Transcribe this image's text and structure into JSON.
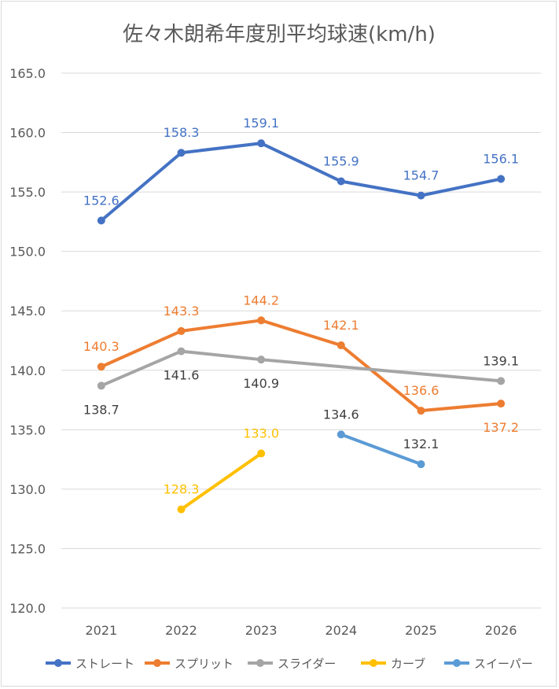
{
  "chart_data": {
    "type": "line",
    "title": "佐々木朗希年度別平均球速(km/h)",
    "xlabel": "",
    "ylabel": "",
    "categories": [
      "2021",
      "2022",
      "2023",
      "2024",
      "2025",
      "2026"
    ],
    "ylim": [
      120,
      165
    ],
    "yticks": [
      120,
      125,
      130,
      135,
      140,
      145,
      150,
      155,
      160,
      165
    ],
    "ytick_labels": [
      "120.0",
      "125.0",
      "130.0",
      "135.0",
      "140.0",
      "145.0",
      "150.0",
      "155.0",
      "160.0",
      "165.0"
    ],
    "grid": true,
    "legend_position": "bottom",
    "series": [
      {
        "name": "ストレート",
        "color": "#4472c4",
        "values": [
          152.6,
          158.3,
          159.1,
          155.9,
          154.7,
          156.1
        ],
        "labels": [
          "152.6",
          "158.3",
          "159.1",
          "155.9",
          "154.7",
          "156.1"
        ],
        "label_position": [
          "above",
          "above",
          "above",
          "above",
          "above",
          "above"
        ],
        "label_color": "#4472c4"
      },
      {
        "name": "スプリット",
        "color": "#ed7d31",
        "values": [
          140.3,
          143.3,
          144.2,
          142.1,
          136.6,
          137.2
        ],
        "labels": [
          "140.3",
          "143.3",
          "144.2",
          "142.1",
          "136.6",
          "137.2"
        ],
        "label_position": [
          "above",
          "above",
          "above",
          "above",
          "above",
          "below"
        ],
        "label_color": "#ed7d31"
      },
      {
        "name": "スライダー",
        "color": "#a5a5a5",
        "values": [
          138.7,
          141.6,
          140.9,
          null,
          null,
          139.1
        ],
        "labels": [
          "138.7",
          "141.6",
          "140.9",
          null,
          null,
          "139.1"
        ],
        "label_position": [
          "below",
          "below",
          "below",
          null,
          null,
          "above"
        ],
        "label_color": "#404040"
      },
      {
        "name": "カーブ",
        "color": "#ffc000",
        "values": [
          null,
          128.3,
          133.0,
          null,
          null,
          null
        ],
        "labels": [
          null,
          "128.3",
          "133.0",
          null,
          null,
          null
        ],
        "label_position": [
          null,
          "above",
          "above",
          null,
          null,
          null
        ],
        "label_color": "#ffc000"
      },
      {
        "name": "スイーパー",
        "color": "#5b9bd5",
        "values": [
          null,
          null,
          null,
          134.6,
          132.1,
          null
        ],
        "labels": [
          null,
          null,
          null,
          "134.6",
          "132.1",
          null
        ],
        "label_position": [
          null,
          null,
          null,
          "above",
          "above",
          null
        ],
        "label_color": "#404040"
      }
    ]
  }
}
